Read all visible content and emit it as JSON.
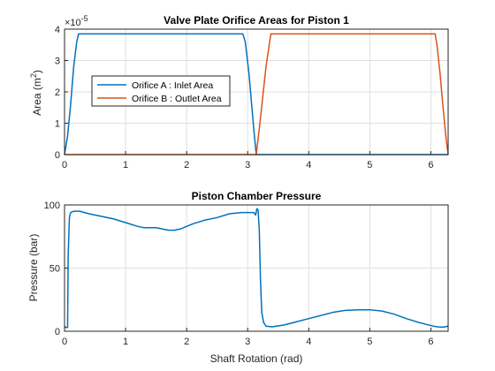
{
  "chart_data": [
    {
      "type": "line",
      "title": "Valve Plate Orifice Areas for Piston 1",
      "ylabel": "Area (m",
      "ylabel_sup": "2",
      "ylabel_tail": ")",
      "exponent_base": "×10",
      "exponent_power": "-5",
      "xlim": [
        0,
        6.2832
      ],
      "ylim": [
        0,
        4
      ],
      "xticks": [
        0,
        1,
        2,
        3,
        4,
        5,
        6
      ],
      "yticks": [
        0,
        1,
        2,
        3,
        4
      ],
      "grid": true,
      "legend_position": "left-middle",
      "series": [
        {
          "name": "Orifice A : Inlet Area",
          "color": "#0072BD",
          "x": [
            0,
            0.05,
            0.1,
            0.15,
            0.2,
            0.23,
            2.92,
            2.96,
            3.02,
            3.1,
            3.14,
            6.2832
          ],
          "y": [
            0,
            0.6,
            1.6,
            2.8,
            3.6,
            3.85,
            3.85,
            3.6,
            2.6,
            0.8,
            0,
            0
          ]
        },
        {
          "name": "Orifice B : Outlet Area",
          "color": "#D95319",
          "x": [
            0,
            3.14,
            3.2,
            3.3,
            3.36,
            3.38,
            6.07,
            6.1,
            6.15,
            6.2,
            6.25,
            6.2832
          ],
          "y": [
            0,
            0,
            1.0,
            2.8,
            3.6,
            3.85,
            3.85,
            3.5,
            2.6,
            1.5,
            0.5,
            0
          ]
        }
      ]
    },
    {
      "type": "line",
      "title": "Piston Chamber Pressure",
      "xlabel": "Shaft Rotation (rad)",
      "ylabel": "Pressure (bar)",
      "xlim": [
        0,
        6.2832
      ],
      "ylim": [
        0,
        100
      ],
      "xticks": [
        0,
        1,
        2,
        3,
        4,
        5,
        6
      ],
      "yticks": [
        0,
        50,
        100
      ],
      "grid": true,
      "series": [
        {
          "color": "#0072BD",
          "x": [
            0,
            0.02,
            0.05,
            0.06,
            0.08,
            0.1,
            0.15,
            0.25,
            0.4,
            0.6,
            0.8,
            1.0,
            1.2,
            1.3,
            1.5,
            1.7,
            1.8,
            1.9,
            2.1,
            2.3,
            2.5,
            2.7,
            2.9,
            3.0,
            3.1,
            3.13,
            3.15,
            3.17,
            3.19,
            3.21,
            3.23,
            3.26,
            3.3,
            3.4,
            3.6,
            3.8,
            4.0,
            4.2,
            4.4,
            4.6,
            4.8,
            5.0,
            5.2,
            5.4,
            5.6,
            5.8,
            6.0,
            6.1,
            6.2,
            6.2832
          ],
          "y": [
            4,
            3,
            3,
            60,
            90,
            94,
            95,
            95,
            93,
            91,
            89,
            86,
            83,
            82,
            82,
            80,
            80,
            81,
            85,
            88,
            90,
            93,
            94,
            94,
            94,
            92,
            97,
            96,
            80,
            40,
            15,
            7,
            4,
            3.5,
            5,
            7.5,
            10,
            12.5,
            15,
            16.5,
            17,
            17,
            16,
            13.5,
            10,
            7,
            4.5,
            3.5,
            3.2,
            4
          ]
        }
      ]
    }
  ]
}
